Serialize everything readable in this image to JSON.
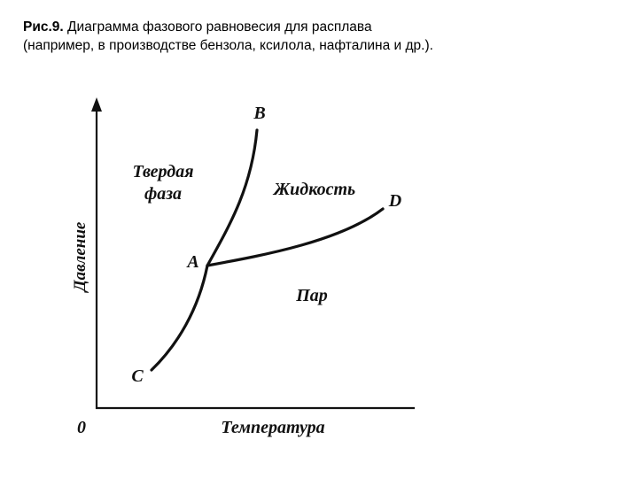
{
  "caption": {
    "fig_number": "Рис.9.",
    "title": " Диаграмма фазового равновесия для расплава",
    "subtitle": "(например, в производстве бензола, ксилола, нафталина и др.)."
  },
  "diagram": {
    "y_axis_label": "Давление",
    "x_axis_label": "Температура",
    "origin_label": "0",
    "points": {
      "A": "A",
      "B": "B",
      "C": "C",
      "D": "D"
    },
    "regions": {
      "solid_line1": "Твердая",
      "solid_line2": "фаза",
      "liquid": "Жидкость",
      "vapor": "Пар"
    }
  }
}
